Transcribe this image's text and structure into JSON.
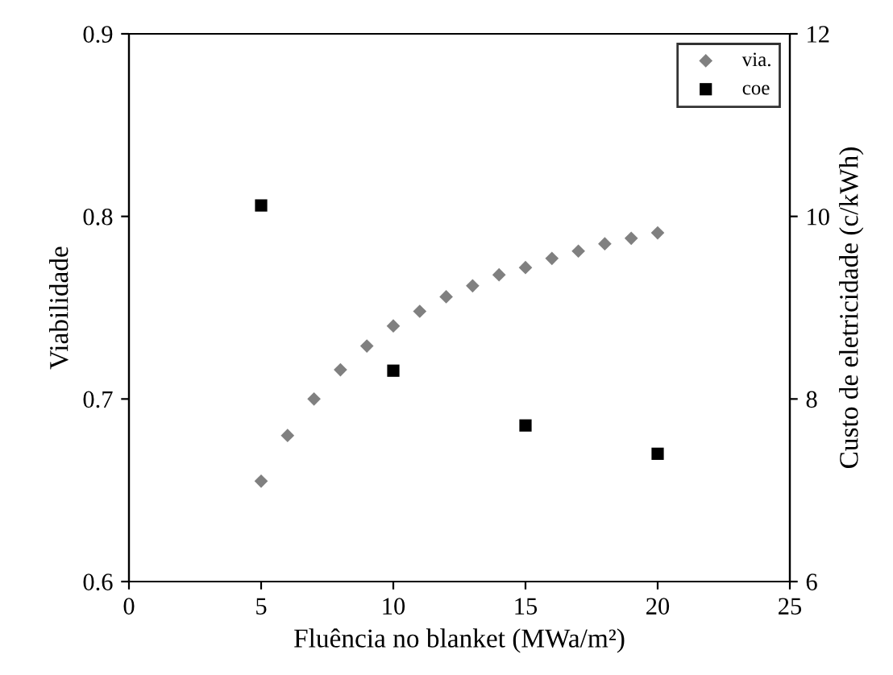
{
  "chart_data": {
    "type": "scatter",
    "xlabel": "Fluência no blanket (MWa/m²)",
    "ylabel": "Viabilidade",
    "y2label": "Custo de eletricidade (c/kWh)",
    "xlim": [
      0,
      25
    ],
    "xticks": [
      0,
      5,
      10,
      15,
      20,
      25
    ],
    "ylim": [
      0.6,
      0.9
    ],
    "yticks": [
      0.6,
      0.7,
      0.8,
      0.9
    ],
    "y2lim": [
      6,
      12
    ],
    "y2ticks": [
      6,
      8,
      10,
      12
    ],
    "legend": "top right",
    "grid": false,
    "series": [
      {
        "name": "via.",
        "color": "#808080",
        "marker": "diamond",
        "x": [
          5,
          6,
          7,
          8,
          9,
          10,
          11,
          12,
          13,
          14,
          15,
          16,
          17,
          18,
          19,
          20
        ],
        "values": [
          0.655,
          0.68,
          0.7,
          0.716,
          0.729,
          0.74,
          0.748,
          0.756,
          0.762,
          0.768,
          0.772,
          0.777,
          0.781,
          0.785,
          0.788,
          0.791
        ]
      },
      {
        "name": "coe",
        "color": "#000000",
        "marker": "square",
        "axis": "y2",
        "x": [
          5,
          10,
          15,
          20
        ],
        "values": [
          10.12,
          8.31,
          7.71,
          7.4
        ]
      }
    ]
  }
}
